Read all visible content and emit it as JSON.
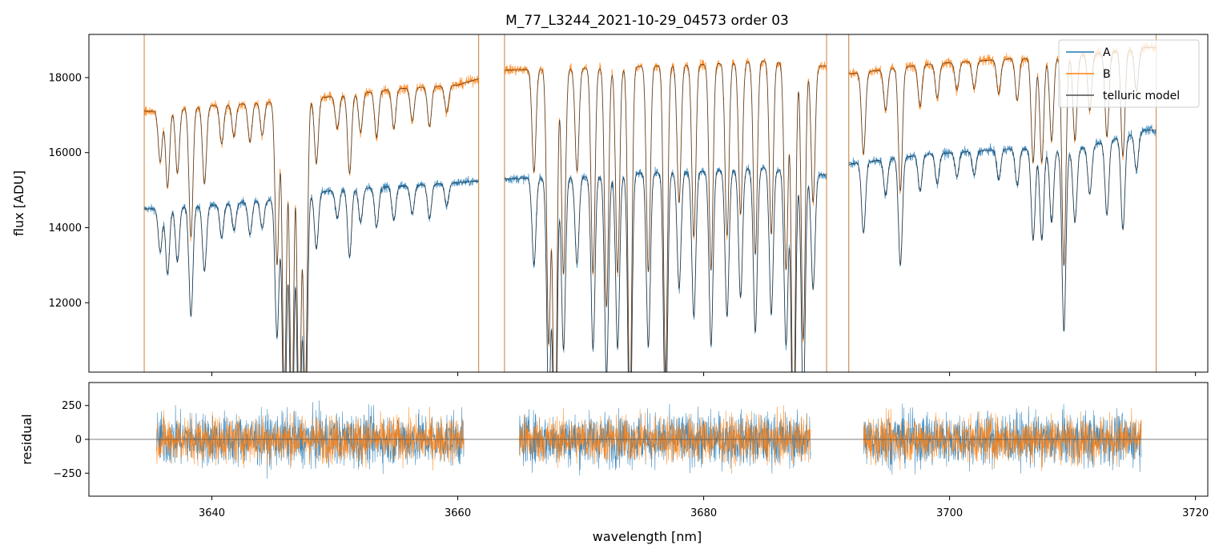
{
  "chart_data": [
    {
      "type": "line",
      "title": "M_77_L3244_2021-10-29_04573  order 03",
      "ylabel": "flux [ADU]",
      "xlabel": "",
      "xlim": [
        3630,
        3721
      ],
      "ylim": [
        10150,
        19150
      ],
      "yticks": [
        12000,
        14000,
        16000,
        18000
      ],
      "ytick_labels": [
        "12000",
        "14000",
        "16000",
        "18000"
      ],
      "xticks": [
        3640,
        3660,
        3680,
        3700,
        3720
      ],
      "legend": {
        "placement": "top-right",
        "entries": [
          {
            "name": "A",
            "color": "#1f77b4"
          },
          {
            "name": "B",
            "color": "#ff7f0e"
          },
          {
            "name": "telluric model",
            "color": "#4d4d4d"
          }
        ]
      },
      "segments": [
        {
          "start": 3634.5,
          "end": 3661.7
        },
        {
          "start": 3663.8,
          "end": 3690.0
        },
        {
          "start": 3691.8,
          "end": 3716.8
        }
      ],
      "series": [
        {
          "name": "A",
          "color": "#1f77b4",
          "x": [
            3635,
            3640,
            3645,
            3650,
            3655,
            3660,
            3664,
            3670,
            3675,
            3680,
            3685,
            3690,
            3692,
            3698,
            3705,
            3710,
            3716
          ],
          "y": [
            14500,
            14600,
            14750,
            15000,
            15100,
            15200,
            15300,
            15350,
            15450,
            15500,
            15600,
            15400,
            15700,
            15950,
            16100,
            16050,
            16600
          ]
        },
        {
          "name": "B",
          "color": "#ff7f0e",
          "x": [
            3635,
            3640,
            3645,
            3650,
            3655,
            3660,
            3664,
            3670,
            3675,
            3680,
            3685,
            3690,
            3692,
            3698,
            3705,
            3710,
            3716
          ],
          "y": [
            17100,
            17250,
            17350,
            17500,
            17700,
            17800,
            18200,
            18250,
            18300,
            18350,
            18450,
            18300,
            18100,
            18350,
            18500,
            18550,
            18800
          ]
        }
      ],
      "absorption_lines": [
        {
          "x": 3635.8,
          "depth": 0.08
        },
        {
          "x": 3636.4,
          "depth": 0.12
        },
        {
          "x": 3637.2,
          "depth": 0.1
        },
        {
          "x": 3638.3,
          "depth": 0.2
        },
        {
          "x": 3639.4,
          "depth": 0.12
        },
        {
          "x": 3640.8,
          "depth": 0.06
        },
        {
          "x": 3641.8,
          "depth": 0.05
        },
        {
          "x": 3643.1,
          "depth": 0.06
        },
        {
          "x": 3644.1,
          "depth": 0.05
        },
        {
          "x": 3645.3,
          "depth": 0.25
        },
        {
          "x": 3645.9,
          "depth": 0.45
        },
        {
          "x": 3646.5,
          "depth": 0.5
        },
        {
          "x": 3647.1,
          "depth": 0.5
        },
        {
          "x": 3647.6,
          "depth": 0.45
        },
        {
          "x": 3648.5,
          "depth": 0.1
        },
        {
          "x": 3650.2,
          "depth": 0.05
        },
        {
          "x": 3651.2,
          "depth": 0.12
        },
        {
          "x": 3652.1,
          "depth": 0.06
        },
        {
          "x": 3653.4,
          "depth": 0.07
        },
        {
          "x": 3654.8,
          "depth": 0.06
        },
        {
          "x": 3656.3,
          "depth": 0.05
        },
        {
          "x": 3657.7,
          "depth": 0.06
        },
        {
          "x": 3659.1,
          "depth": 0.04
        },
        {
          "x": 3666.2,
          "depth": 0.15
        },
        {
          "x": 3667.4,
          "depth": 0.4
        },
        {
          "x": 3667.9,
          "depth": 0.6
        },
        {
          "x": 3668.6,
          "depth": 0.3
        },
        {
          "x": 3669.7,
          "depth": 0.15
        },
        {
          "x": 3671.0,
          "depth": 0.3
        },
        {
          "x": 3672.1,
          "depth": 0.35
        },
        {
          "x": 3673.0,
          "depth": 0.3
        },
        {
          "x": 3674.0,
          "depth": 0.5
        },
        {
          "x": 3675.5,
          "depth": 0.3
        },
        {
          "x": 3676.9,
          "depth": 0.45
        },
        {
          "x": 3678.0,
          "depth": 0.2
        },
        {
          "x": 3679.2,
          "depth": 0.25
        },
        {
          "x": 3680.6,
          "depth": 0.3
        },
        {
          "x": 3681.9,
          "depth": 0.25
        },
        {
          "x": 3683.0,
          "depth": 0.22
        },
        {
          "x": 3684.2,
          "depth": 0.28
        },
        {
          "x": 3685.5,
          "depth": 0.25
        },
        {
          "x": 3686.7,
          "depth": 0.3
        },
        {
          "x": 3687.3,
          "depth": 0.55
        },
        {
          "x": 3688.1,
          "depth": 0.4
        },
        {
          "x": 3688.9,
          "depth": 0.2
        },
        {
          "x": 3693.0,
          "depth": 0.12
        },
        {
          "x": 3694.8,
          "depth": 0.06
        },
        {
          "x": 3696.0,
          "depth": 0.18
        },
        {
          "x": 3697.6,
          "depth": 0.06
        },
        {
          "x": 3699.0,
          "depth": 0.05
        },
        {
          "x": 3700.6,
          "depth": 0.04
        },
        {
          "x": 3702.0,
          "depth": 0.04
        },
        {
          "x": 3704.0,
          "depth": 0.05
        },
        {
          "x": 3705.5,
          "depth": 0.06
        },
        {
          "x": 3706.8,
          "depth": 0.15
        },
        {
          "x": 3707.5,
          "depth": 0.15
        },
        {
          "x": 3708.3,
          "depth": 0.12
        },
        {
          "x": 3709.3,
          "depth": 0.3
        },
        {
          "x": 3710.2,
          "depth": 0.12
        },
        {
          "x": 3711.4,
          "depth": 0.08
        },
        {
          "x": 3712.8,
          "depth": 0.12
        },
        {
          "x": 3714.1,
          "depth": 0.15
        },
        {
          "x": 3715.2,
          "depth": 0.06
        }
      ]
    },
    {
      "type": "line",
      "title": "",
      "ylabel": "residual",
      "xlabel": "wavelength [nm]",
      "xlim": [
        3630,
        3721
      ],
      "ylim": [
        -420,
        420
      ],
      "yticks": [
        -250,
        0,
        250
      ],
      "ytick_labels": [
        "−250",
        "0",
        "250"
      ],
      "xticks": [
        3640,
        3660,
        3680,
        3700,
        3720
      ],
      "xtick_labels": [
        "3640",
        "3660",
        "3680",
        "3700",
        "3720"
      ],
      "segments": [
        {
          "start": 3635.5,
          "end": 3660.5
        },
        {
          "start": 3665.0,
          "end": 3688.7
        },
        {
          "start": 3693.0,
          "end": 3715.6
        }
      ],
      "series": [
        {
          "name": "A",
          "color": "#1f77b4",
          "noise_scale": 170
        },
        {
          "name": "B",
          "color": "#ff7f0e",
          "noise_scale": 150
        }
      ],
      "reference_line": 0
    }
  ]
}
